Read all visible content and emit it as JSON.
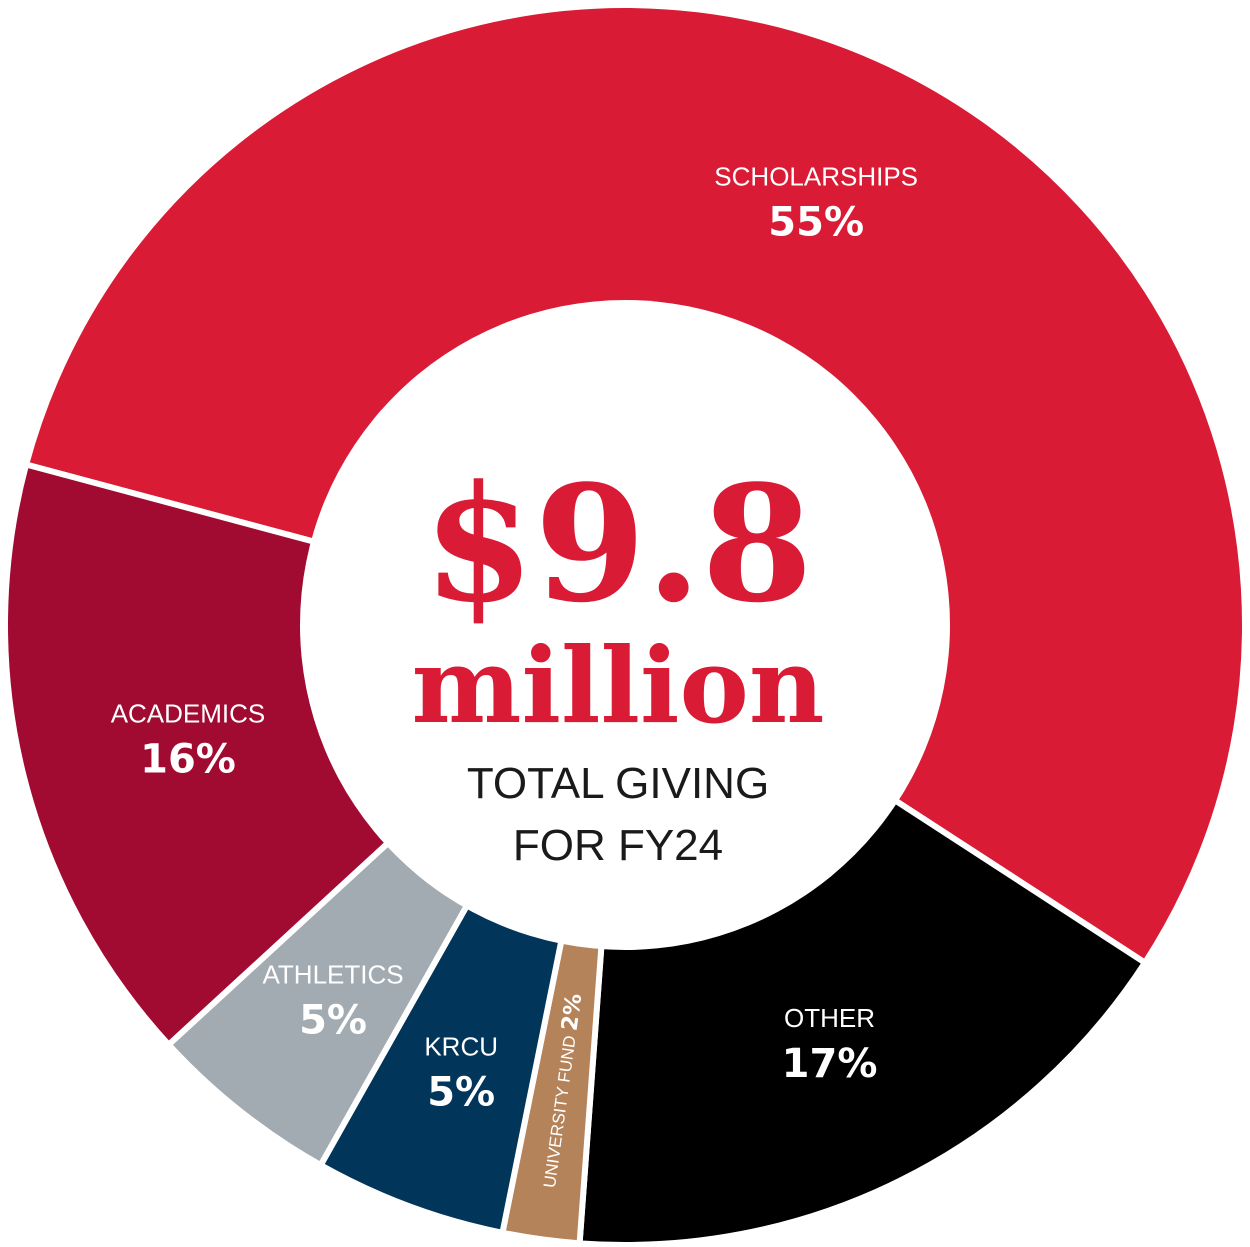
{
  "chart_data": {
    "type": "pie",
    "categories": [
      "SCHOLARSHIPS",
      "OTHER",
      "UNIVERSITY FUND",
      "KRCU",
      "ATHLETICS",
      "ACADEMICS"
    ],
    "values": [
      55,
      17,
      2,
      5,
      5,
      16
    ],
    "value_labels": [
      "55%",
      "17%",
      "2%",
      "5%",
      "5%",
      "16%"
    ],
    "colors": [
      "#d91b35",
      "#000000",
      "#b5835a",
      "#02355a",
      "#a3abb2",
      "#a10a31"
    ],
    "center": {
      "amount": "$9.8",
      "unit": "million",
      "line1": "TOTAL GIVING",
      "line2": "FOR FY24"
    }
  }
}
